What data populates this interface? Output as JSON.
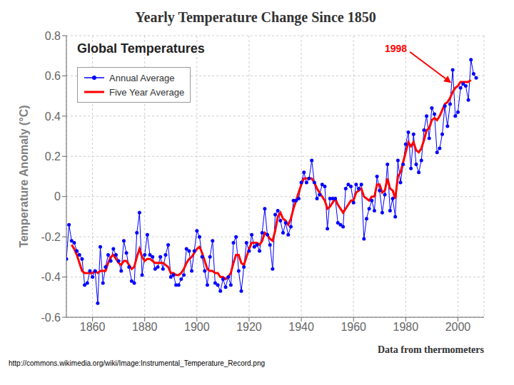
{
  "chart_data": {
    "type": "line",
    "title": "Yearly Temperature Change Since 1850",
    "subtitle": "Global Temperatures",
    "xlabel": "Data from thermometers",
    "ylabel": "Temperature Anomaly (°C)",
    "footnote": "http://commons.wikimedia.org/wiki/Image:Instrumental_Temperature_Record.png",
    "xlim": [
      1850,
      2010
    ],
    "ylim": [
      -0.6,
      0.8
    ],
    "xticks": [
      1860,
      1880,
      1900,
      1920,
      1940,
      1960,
      1980,
      2000
    ],
    "yticks": [
      -0.6,
      -0.4,
      -0.2,
      0,
      0.2,
      0.4,
      0.6,
      0.8
    ],
    "grid": true,
    "legend": "upper left",
    "series": [
      {
        "name": "Annual Average",
        "color": "#0000FF",
        "marker": "circle",
        "x": [
          1850,
          1851,
          1852,
          1853,
          1854,
          1855,
          1856,
          1857,
          1858,
          1859,
          1860,
          1861,
          1862,
          1863,
          1864,
          1865,
          1866,
          1867,
          1868,
          1869,
          1870,
          1871,
          1872,
          1873,
          1874,
          1875,
          1876,
          1877,
          1878,
          1879,
          1880,
          1881,
          1882,
          1883,
          1884,
          1885,
          1886,
          1887,
          1888,
          1889,
          1890,
          1891,
          1892,
          1893,
          1894,
          1895,
          1896,
          1897,
          1898,
          1899,
          1900,
          1901,
          1902,
          1903,
          1904,
          1905,
          1906,
          1907,
          1908,
          1909,
          1910,
          1911,
          1912,
          1913,
          1914,
          1915,
          1916,
          1917,
          1918,
          1919,
          1920,
          1921,
          1922,
          1923,
          1924,
          1925,
          1926,
          1927,
          1928,
          1929,
          1930,
          1931,
          1932,
          1933,
          1934,
          1935,
          1936,
          1937,
          1938,
          1939,
          1940,
          1941,
          1942,
          1943,
          1944,
          1945,
          1946,
          1947,
          1948,
          1949,
          1950,
          1951,
          1952,
          1953,
          1954,
          1955,
          1956,
          1957,
          1958,
          1959,
          1960,
          1961,
          1962,
          1963,
          1964,
          1965,
          1966,
          1967,
          1968,
          1969,
          1970,
          1971,
          1972,
          1973,
          1974,
          1975,
          1976,
          1977,
          1978,
          1979,
          1980,
          1981,
          1982,
          1983,
          1984,
          1985,
          1986,
          1987,
          1988,
          1989,
          1990,
          1991,
          1992,
          1993,
          1994,
          1995,
          1996,
          1997,
          1998,
          1999,
          2000,
          2001,
          2002,
          2003,
          2004,
          2005,
          2006,
          2007
        ],
        "values": [
          -0.31,
          -0.14,
          -0.22,
          -0.23,
          -0.27,
          -0.29,
          -0.31,
          -0.44,
          -0.43,
          -0.37,
          -0.4,
          -0.37,
          -0.53,
          -0.25,
          -0.43,
          -0.35,
          -0.29,
          -0.32,
          -0.26,
          -0.29,
          -0.32,
          -0.37,
          -0.22,
          -0.28,
          -0.35,
          -0.42,
          -0.43,
          -0.18,
          -0.08,
          -0.39,
          -0.29,
          -0.19,
          -0.29,
          -0.3,
          -0.36,
          -0.35,
          -0.3,
          -0.36,
          -0.29,
          -0.24,
          -0.4,
          -0.39,
          -0.44,
          -0.44,
          -0.41,
          -0.39,
          -0.26,
          -0.27,
          -0.37,
          -0.27,
          -0.17,
          -0.2,
          -0.3,
          -0.37,
          -0.44,
          -0.3,
          -0.22,
          -0.43,
          -0.44,
          -0.47,
          -0.41,
          -0.45,
          -0.4,
          -0.44,
          -0.23,
          -0.2,
          -0.37,
          -0.47,
          -0.35,
          -0.23,
          -0.27,
          -0.19,
          -0.25,
          -0.24,
          -0.27,
          -0.18,
          -0.06,
          -0.19,
          -0.24,
          -0.36,
          -0.09,
          -0.07,
          -0.12,
          -0.18,
          -0.13,
          -0.19,
          -0.15,
          -0.02,
          -0.02,
          -0.01,
          0.07,
          0.12,
          0.07,
          0.09,
          0.18,
          0.07,
          -0.01,
          0.01,
          0.06,
          0.05,
          -0.16,
          -0.01,
          -0.01,
          -0.01,
          -0.13,
          -0.14,
          -0.15,
          0.04,
          0.06,
          0.05,
          -0.03,
          0.06,
          0.04,
          0.06,
          -0.21,
          -0.11,
          -0.06,
          -0.02,
          -0.07,
          0.1,
          0.03,
          -0.08,
          0.01,
          0.16,
          -0.07,
          -0.01,
          -0.1,
          0.18,
          0.07,
          0.16,
          0.26,
          0.32,
          0.14,
          0.31,
          0.16,
          0.12,
          0.18,
          0.33,
          0.4,
          0.29,
          0.44,
          0.41,
          0.22,
          0.24,
          0.31,
          0.45,
          0.35,
          0.46,
          0.63,
          0.4,
          0.42,
          0.54,
          0.56,
          0.55,
          0.48,
          0.68,
          0.61,
          0.59
        ]
      },
      {
        "name": "Five Year Average",
        "color": "#ff0000",
        "marker": "none",
        "x": [
          1852,
          1853,
          1854,
          1855,
          1856,
          1857,
          1858,
          1859,
          1860,
          1861,
          1862,
          1863,
          1864,
          1865,
          1866,
          1867,
          1868,
          1869,
          1870,
          1871,
          1872,
          1873,
          1874,
          1875,
          1876,
          1877,
          1878,
          1879,
          1880,
          1881,
          1882,
          1883,
          1884,
          1885,
          1886,
          1887,
          1888,
          1889,
          1890,
          1891,
          1892,
          1893,
          1894,
          1895,
          1896,
          1897,
          1898,
          1899,
          1900,
          1901,
          1902,
          1903,
          1904,
          1905,
          1906,
          1907,
          1908,
          1909,
          1910,
          1911,
          1912,
          1913,
          1914,
          1915,
          1916,
          1917,
          1918,
          1919,
          1920,
          1921,
          1922,
          1923,
          1924,
          1925,
          1926,
          1927,
          1928,
          1929,
          1930,
          1931,
          1932,
          1933,
          1934,
          1935,
          1936,
          1937,
          1938,
          1939,
          1940,
          1941,
          1942,
          1943,
          1944,
          1945,
          1946,
          1947,
          1948,
          1949,
          1950,
          1951,
          1952,
          1953,
          1954,
          1955,
          1956,
          1957,
          1958,
          1959,
          1960,
          1961,
          1962,
          1963,
          1964,
          1965,
          1966,
          1967,
          1968,
          1969,
          1970,
          1971,
          1972,
          1973,
          1974,
          1975,
          1976,
          1977,
          1978,
          1979,
          1980,
          1981,
          1982,
          1983,
          1984,
          1985,
          1986,
          1987,
          1988,
          1989,
          1990,
          1991,
          1992,
          1993,
          1994,
          1995,
          1996,
          1997,
          1998,
          1999,
          2000,
          2001,
          2002,
          2003,
          2004,
          2005
        ],
        "values": [
          -0.24,
          -0.26,
          -0.29,
          -0.33,
          -0.37,
          -0.38,
          -0.38,
          -0.38,
          -0.38,
          -0.37,
          -0.38,
          -0.37,
          -0.37,
          -0.37,
          -0.33,
          -0.3,
          -0.29,
          -0.31,
          -0.33,
          -0.34,
          -0.32,
          -0.32,
          -0.34,
          -0.36,
          -0.35,
          -0.3,
          -0.26,
          -0.3,
          -0.32,
          -0.31,
          -0.31,
          -0.32,
          -0.33,
          -0.33,
          -0.33,
          -0.33,
          -0.34,
          -0.35,
          -0.38,
          -0.38,
          -0.39,
          -0.39,
          -0.38,
          -0.36,
          -0.33,
          -0.31,
          -0.3,
          -0.28,
          -0.26,
          -0.25,
          -0.28,
          -0.32,
          -0.36,
          -0.37,
          -0.37,
          -0.38,
          -0.38,
          -0.4,
          -0.4,
          -0.41,
          -0.4,
          -0.38,
          -0.33,
          -0.29,
          -0.29,
          -0.33,
          -0.34,
          -0.3,
          -0.26,
          -0.23,
          -0.23,
          -0.23,
          -0.24,
          -0.22,
          -0.18,
          -0.19,
          -0.21,
          -0.22,
          -0.17,
          -0.1,
          -0.08,
          -0.11,
          -0.12,
          -0.14,
          -0.11,
          -0.06,
          -0.02,
          0.02,
          0.06,
          0.09,
          0.09,
          0.09,
          0.09,
          0.07,
          0.04,
          0.02,
          0.0,
          -0.02,
          -0.06,
          -0.05,
          -0.03,
          -0.01,
          -0.04,
          -0.06,
          -0.08,
          -0.06,
          -0.04,
          -0.02,
          -0.02,
          0.02,
          0.03,
          0.04,
          0.0,
          -0.01,
          -0.02,
          0.0,
          0.0,
          0.06,
          0.06,
          0.02,
          0.03,
          0.09,
          0.04,
          0.03,
          -0.01,
          0.1,
          0.12,
          0.17,
          0.22,
          0.27,
          0.25,
          0.27,
          0.23,
          0.22,
          0.24,
          0.28,
          0.33,
          0.34,
          0.38,
          0.39,
          0.38,
          0.4,
          0.43,
          0.46,
          0.47,
          0.49,
          0.52,
          0.54,
          0.55,
          0.57,
          0.57,
          0.57,
          0.57,
          0.58
        ]
      }
    ],
    "annotations": [
      {
        "text": "1998",
        "x": 1998,
        "y": 0.56,
        "color": "#ff0000"
      }
    ]
  }
}
